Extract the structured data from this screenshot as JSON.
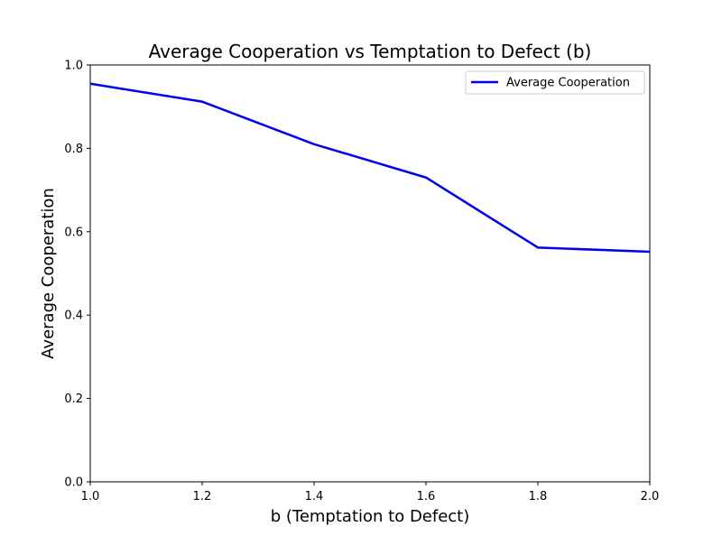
{
  "chart_data": {
    "type": "line",
    "title": "Average Cooperation vs Temptation to Defect (b)",
    "xlabel": "b (Temptation to Defect)",
    "ylabel": "Average Cooperation",
    "xlim": [
      1.0,
      2.0
    ],
    "ylim": [
      0.0,
      1.0
    ],
    "xticks": [
      "1.0",
      "1.2",
      "1.4",
      "1.6",
      "1.8",
      "2.0"
    ],
    "yticks": [
      "0.0",
      "0.2",
      "0.4",
      "0.6",
      "0.8",
      "1.0"
    ],
    "grid": false,
    "legend_position": "top-right",
    "series": [
      {
        "name": "Average Cooperation",
        "color": "#0000ee",
        "x": [
          1.0,
          1.2,
          1.4,
          1.6,
          1.8,
          2.0
        ],
        "y": [
          0.955,
          0.912,
          0.81,
          0.73,
          0.562,
          0.552
        ]
      }
    ]
  }
}
